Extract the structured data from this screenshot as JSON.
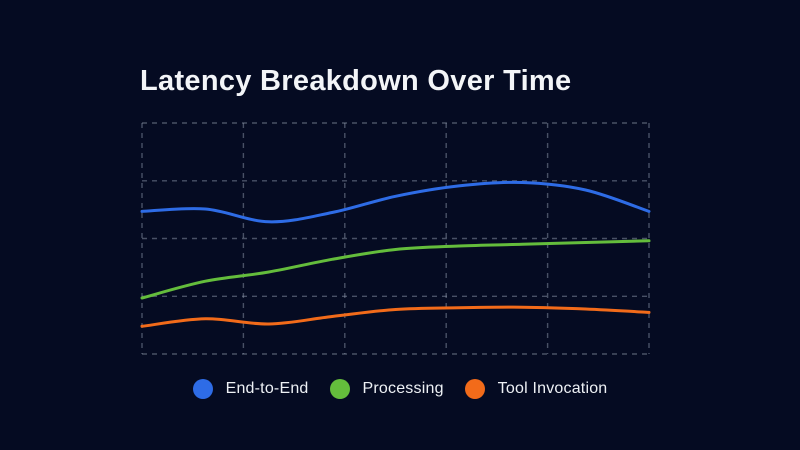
{
  "title": "Latency Breakdown Over Time",
  "colors": {
    "background": "#050b22",
    "title_text": "#f3f5f8",
    "legend_text": "#eef1f5",
    "grid_line": "#8e97a9",
    "end_to_end": "#2e6ce6",
    "processing": "#64bd3c",
    "tool_invocation": "#f26b1a"
  },
  "legend": {
    "items": [
      {
        "label": "End-to-End",
        "color": "#2e6ce6",
        "swatch_icon": "circle"
      },
      {
        "label": "Processing",
        "color": "#64bd3c",
        "swatch_icon": "circle"
      },
      {
        "label": "Tool Invocation",
        "color": "#f26b1a",
        "swatch_icon": "circle"
      }
    ]
  },
  "chart_data": {
    "type": "line",
    "title": "Latency Breakdown Over Time",
    "x": [
      0,
      1,
      2,
      3,
      4,
      5,
      6,
      7,
      8
    ],
    "xlabel": "",
    "ylabel": "",
    "axis_tick_labels_visible": false,
    "y_units": "gridline units (no axis labels shown in image)",
    "ylim": [
      0,
      4
    ],
    "grid": {
      "shown": true,
      "style": "dashed",
      "v_lines": 6,
      "h_lines": 5
    },
    "legend_position": "bottom-center",
    "smoothing": true,
    "series": [
      {
        "name": "End-to-End",
        "color": "#2e6ce6",
        "values": [
          2.47,
          2.51,
          2.29,
          2.45,
          2.73,
          2.91,
          2.97,
          2.84,
          2.47
        ]
      },
      {
        "name": "Processing",
        "color": "#64bd3c",
        "values": [
          0.97,
          1.26,
          1.42,
          1.64,
          1.81,
          1.87,
          1.9,
          1.93,
          1.96
        ]
      },
      {
        "name": "Tool Invocation",
        "color": "#f26b1a",
        "values": [
          0.48,
          0.61,
          0.52,
          0.65,
          0.77,
          0.8,
          0.81,
          0.78,
          0.72
        ]
      }
    ]
  }
}
